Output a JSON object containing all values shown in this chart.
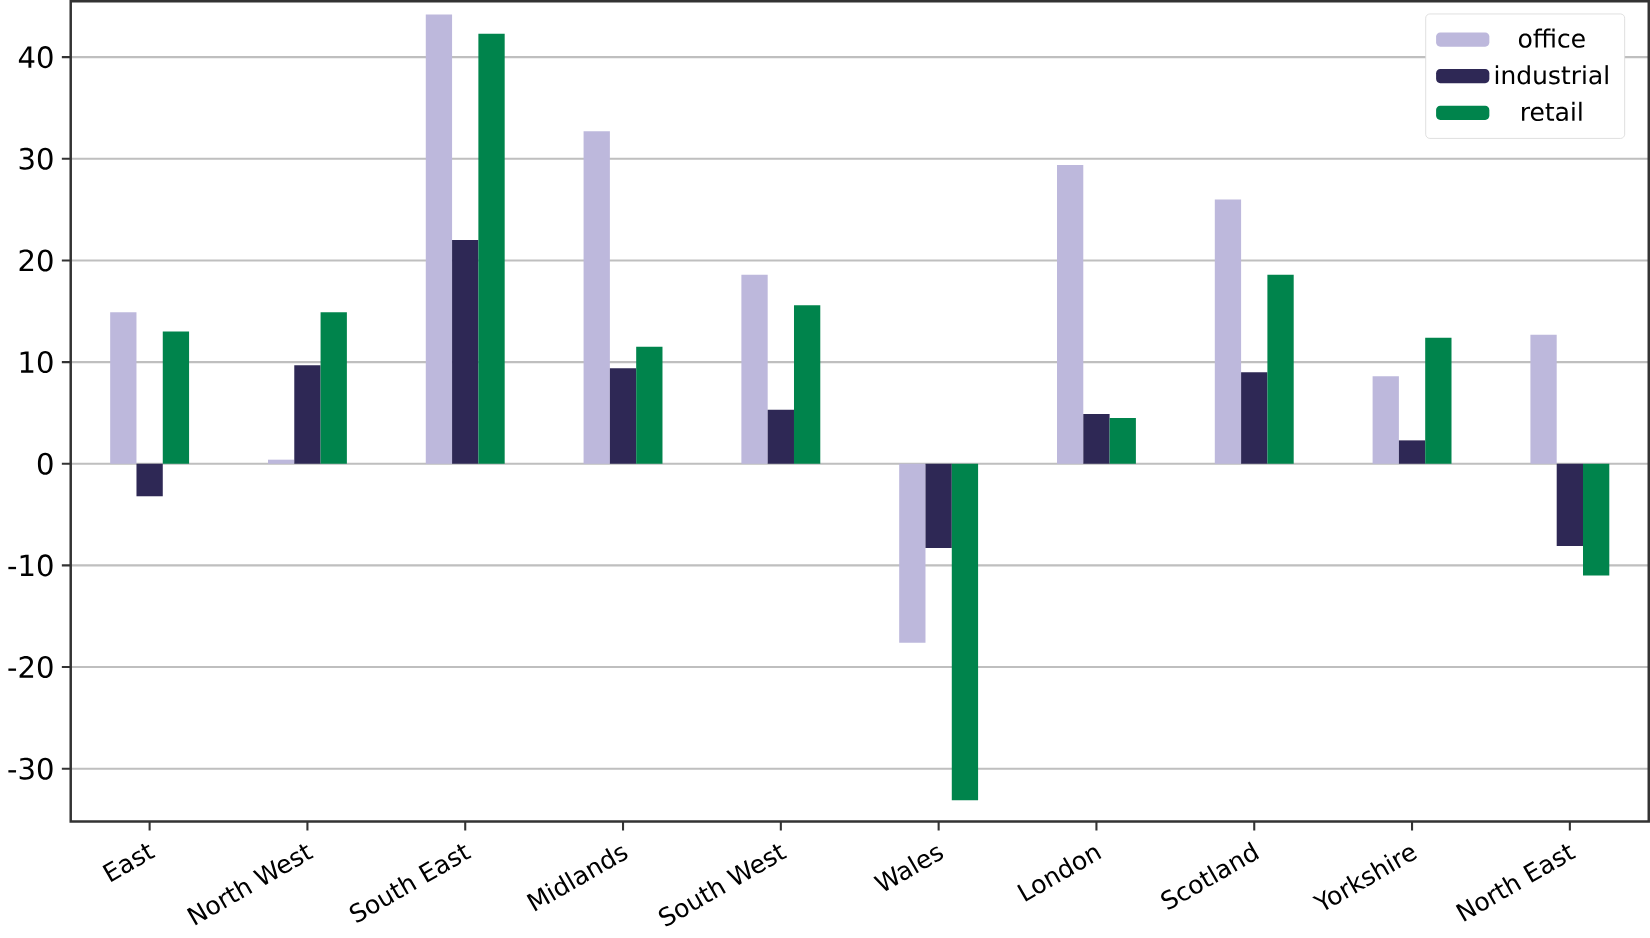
{
  "chart_data": {
    "type": "bar",
    "categories": [
      "East",
      "North West",
      "South East",
      "Midlands",
      "South West",
      "Wales",
      "London",
      "Scotland",
      "Yorkshire",
      "North East"
    ],
    "series": [
      {
        "name": "office",
        "color": "#bdb8dc",
        "values": [
          14.9,
          0.4,
          44.2,
          32.7,
          18.6,
          -17.6,
          29.4,
          26.0,
          8.6,
          12.7
        ]
      },
      {
        "name": "industrial",
        "color": "#2e2855",
        "values": [
          -3.2,
          9.7,
          22.0,
          9.4,
          5.3,
          -8.3,
          4.9,
          9.0,
          2.3,
          -8.1
        ]
      },
      {
        "name": "retail",
        "color": "#00844c",
        "values": [
          13.0,
          14.9,
          42.3,
          11.5,
          15.6,
          -33.1,
          4.5,
          18.6,
          12.4,
          -11.0
        ]
      }
    ],
    "ylim": [
      -35.2,
      45.5
    ],
    "yticks": [
      -30,
      -20,
      -10,
      0,
      10,
      20,
      30,
      40
    ],
    "grid": "y",
    "legend": "top right"
  }
}
